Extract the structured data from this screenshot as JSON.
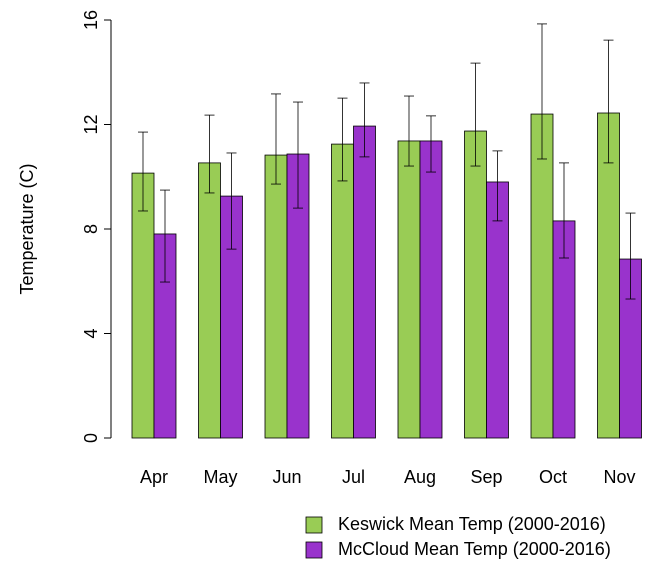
{
  "chart_data": {
    "type": "bar",
    "y_label": "Temperature (C)",
    "categories": [
      "Apr",
      "May",
      "Jun",
      "Jul",
      "Aug",
      "Sep",
      "Oct",
      "Nov"
    ],
    "series": [
      {
        "name": "Keswick Mean Temp (2000-2016)",
        "color": "#99cc55",
        "values": [
          10.14,
          10.53,
          10.83,
          11.25,
          11.37,
          11.75,
          12.4,
          12.44
        ],
        "lower": [
          8.69,
          9.38,
          9.72,
          9.84,
          10.41,
          10.41,
          10.68,
          10.53
        ],
        "upper": [
          11.71,
          12.36,
          13.17,
          13.01,
          13.09,
          14.35,
          15.85,
          15.23
        ]
      },
      {
        "name": "McCloud Mean Temp (2000-2016)",
        "color": "#9933cc",
        "values": [
          7.81,
          9.26,
          10.87,
          11.94,
          11.37,
          9.8,
          8.31,
          6.85
        ],
        "lower": [
          5.97,
          7.23,
          8.8,
          10.76,
          10.18,
          8.31,
          6.89,
          5.32
        ],
        "upper": [
          9.49,
          10.91,
          12.86,
          13.59,
          12.33,
          10.99,
          10.53,
          8.61
        ]
      }
    ],
    "ylim": [
      0,
      16
    ],
    "yticks": [
      0,
      4,
      8,
      12,
      16
    ]
  }
}
